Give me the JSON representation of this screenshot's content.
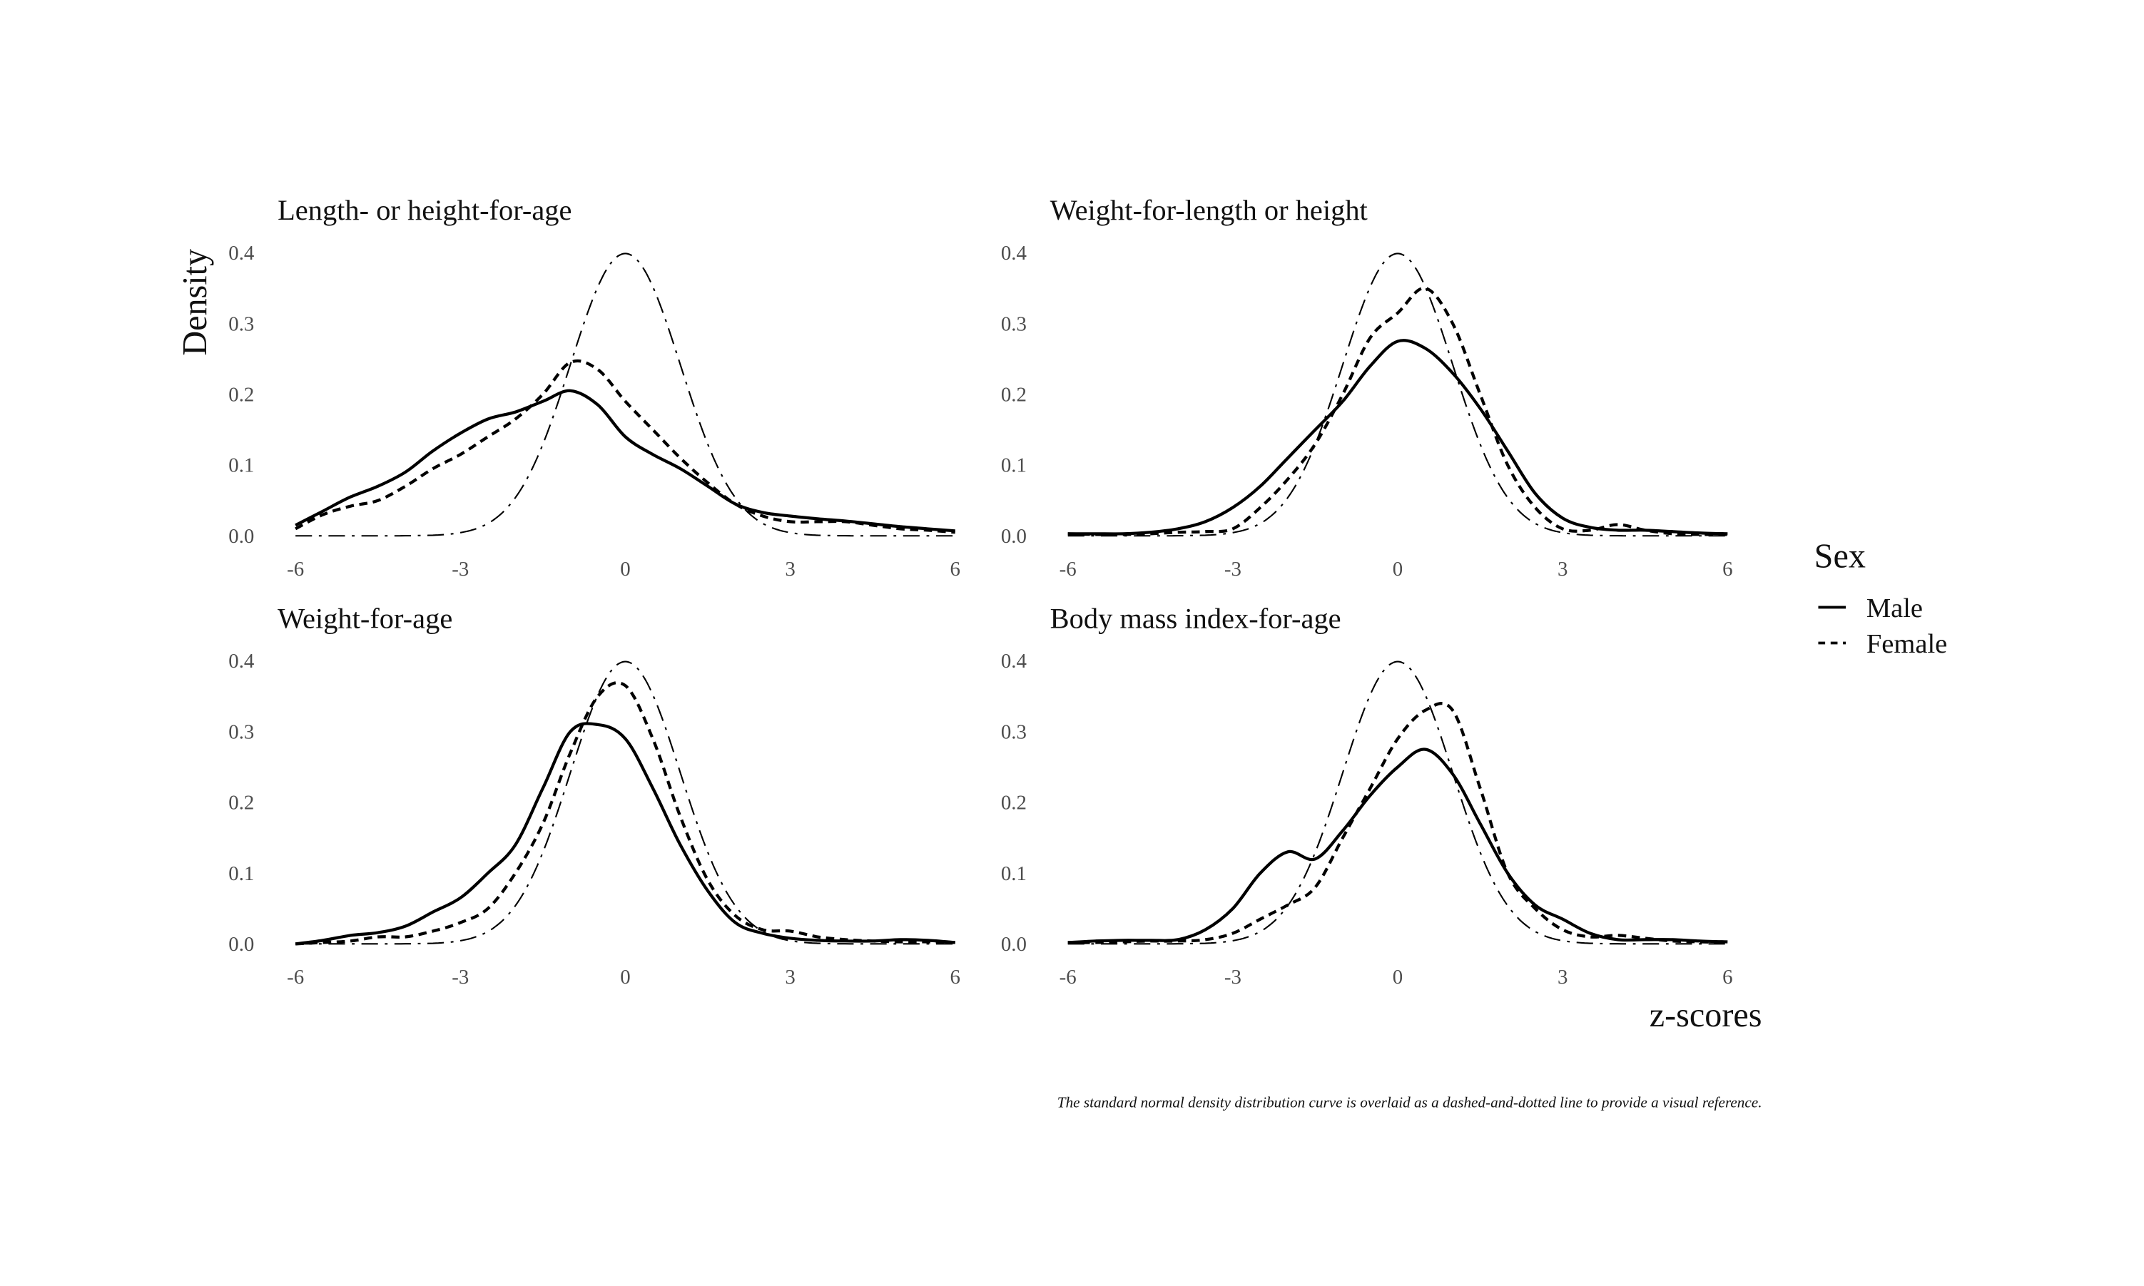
{
  "chart_data": {
    "type": "line",
    "ylabel": "Density",
    "xlabel": "z-scores",
    "caption": "The standard normal density distribution curve is overlaid as a dashed-and-dotted line to provide a visual reference.",
    "legend": {
      "title": "Sex",
      "entries": [
        "Male",
        "Female"
      ],
      "placement": "right"
    },
    "xlim": [
      -6,
      6
    ],
    "ylim": [
      0,
      0.4
    ],
    "x_ticks": [
      "-6",
      "-3",
      "0",
      "3",
      "6"
    ],
    "y_ticks": [
      "0.0",
      "0.1",
      "0.2",
      "0.3",
      "0.4"
    ],
    "x": [
      -6,
      -5.5,
      -5,
      -4.5,
      -4,
      -3.5,
      -3,
      -2.5,
      -2,
      -1.5,
      -1,
      -0.5,
      0,
      0.5,
      1,
      1.5,
      2,
      2.5,
      3,
      3.5,
      4,
      4.5,
      5,
      5.5,
      6
    ],
    "reference": "standard normal density",
    "panels": [
      {
        "title": "Length- or height-for-age",
        "series": [
          {
            "name": "Male",
            "values": [
              0.015,
              0.035,
              0.055,
              0.07,
              0.09,
              0.12,
              0.145,
              0.165,
              0.175,
              0.19,
              0.205,
              0.185,
              0.14,
              0.115,
              0.095,
              0.07,
              0.045,
              0.033,
              0.028,
              0.024,
              0.021,
              0.017,
              0.013,
              0.01,
              0.007
            ]
          },
          {
            "name": "Female",
            "values": [
              0.01,
              0.03,
              0.042,
              0.05,
              0.07,
              0.095,
              0.115,
              0.14,
              0.165,
              0.2,
              0.245,
              0.235,
              0.19,
              0.15,
              0.11,
              0.075,
              0.045,
              0.028,
              0.02,
              0.02,
              0.02,
              0.015,
              0.01,
              0.008,
              0.005
            ]
          }
        ]
      },
      {
        "title": "Weight-for-length or height",
        "series": [
          {
            "name": "Male",
            "values": [
              0.003,
              0.003,
              0.003,
              0.005,
              0.01,
              0.02,
              0.04,
              0.07,
              0.11,
              0.15,
              0.19,
              0.24,
              0.275,
              0.265,
              0.23,
              0.18,
              0.12,
              0.06,
              0.025,
              0.012,
              0.008,
              0.008,
              0.006,
              0.004,
              0.003
            ]
          },
          {
            "name": "Female",
            "values": [
              0.003,
              0.002,
              0.002,
              0.003,
              0.005,
              0.006,
              0.01,
              0.04,
              0.08,
              0.13,
              0.2,
              0.28,
              0.315,
              0.35,
              0.3,
              0.2,
              0.1,
              0.04,
              0.01,
              0.008,
              0.016,
              0.008,
              0.003,
              0.002,
              0.002
            ]
          }
        ]
      },
      {
        "title": "Weight-for-age",
        "series": [
          {
            "name": "Male",
            "values": [
              0.0,
              0.005,
              0.012,
              0.016,
              0.025,
              0.045,
              0.065,
              0.1,
              0.14,
              0.22,
              0.3,
              0.31,
              0.29,
              0.22,
              0.14,
              0.075,
              0.03,
              0.015,
              0.008,
              0.005,
              0.004,
              0.004,
              0.006,
              0.005,
              0.002
            ]
          },
          {
            "name": "Female",
            "values": [
              0.0,
              0.002,
              0.004,
              0.01,
              0.01,
              0.018,
              0.03,
              0.05,
              0.1,
              0.17,
              0.27,
              0.35,
              0.365,
              0.29,
              0.18,
              0.09,
              0.04,
              0.02,
              0.018,
              0.01,
              0.006,
              0.004,
              0.003,
              0.003,
              0.002
            ]
          }
        ]
      },
      {
        "title": "Body mass index-for-age",
        "series": [
          {
            "name": "Male",
            "values": [
              0.002,
              0.004,
              0.005,
              0.005,
              0.006,
              0.02,
              0.05,
              0.1,
              0.13,
              0.12,
              0.16,
              0.21,
              0.25,
              0.275,
              0.24,
              0.17,
              0.1,
              0.055,
              0.035,
              0.015,
              0.006,
              0.006,
              0.006,
              0.004,
              0.003
            ]
          },
          {
            "name": "Female",
            "values": [
              0.002,
              0.002,
              0.003,
              0.004,
              0.004,
              0.006,
              0.015,
              0.035,
              0.055,
              0.08,
              0.15,
              0.22,
              0.29,
              0.33,
              0.33,
              0.22,
              0.1,
              0.05,
              0.02,
              0.01,
              0.012,
              0.008,
              0.004,
              0.003,
              0.002
            ]
          }
        ]
      }
    ]
  }
}
